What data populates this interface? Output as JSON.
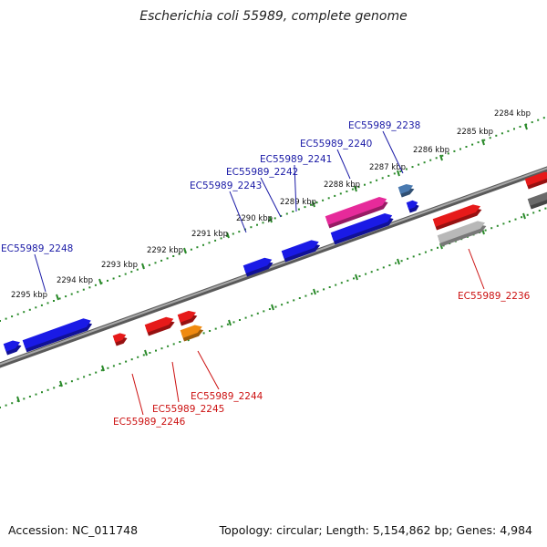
{
  "title": "Escherichia coli 55989, complete genome",
  "footer": {
    "accession": "Accession: NC_011748",
    "summary": "Topology: circular; Length: 5,154,862 bp; Genes: 4,984"
  },
  "ticks": [
    {
      "label": "2284 kbp"
    },
    {
      "label": "2285 kbp"
    },
    {
      "label": "2286 kbp"
    },
    {
      "label": "2287 kbp"
    },
    {
      "label": "2288 kbp"
    },
    {
      "label": "2289 kbp"
    },
    {
      "label": "2290 kbp"
    },
    {
      "label": "2291 kbp"
    },
    {
      "label": "2292 kbp"
    },
    {
      "label": "2293 kbp"
    },
    {
      "label": "2294 kbp"
    },
    {
      "label": "2295 kbp"
    }
  ],
  "gene_labels": [
    {
      "text": "EC55989_2238",
      "strand": "plus"
    },
    {
      "text": "EC55989_2240",
      "strand": "plus"
    },
    {
      "text": "EC55989_2241",
      "strand": "plus"
    },
    {
      "text": "EC55989_2242",
      "strand": "plus"
    },
    {
      "text": "EC55989_2243",
      "strand": "plus"
    },
    {
      "text": "EC55989_2248",
      "strand": "plus"
    },
    {
      "text": "EC55989_2236",
      "strand": "minus"
    },
    {
      "text": "EC55989_2244",
      "strand": "minus"
    },
    {
      "text": "EC55989_2245",
      "strand": "minus"
    },
    {
      "text": "EC55989_2246",
      "strand": "minus"
    }
  ],
  "colors": {
    "plus_label": "#1a1aa6",
    "minus_label": "#cc1111",
    "tick": "#2a8a2a",
    "backbone": "#808080",
    "blue": "#1a1ae6",
    "red": "#e61a1a",
    "magenta": "#e62a9a",
    "orange": "#f08a10",
    "gray": "#b8b8b8",
    "steel": "#4a7ab0",
    "darkgray": "#6a6a6a"
  }
}
